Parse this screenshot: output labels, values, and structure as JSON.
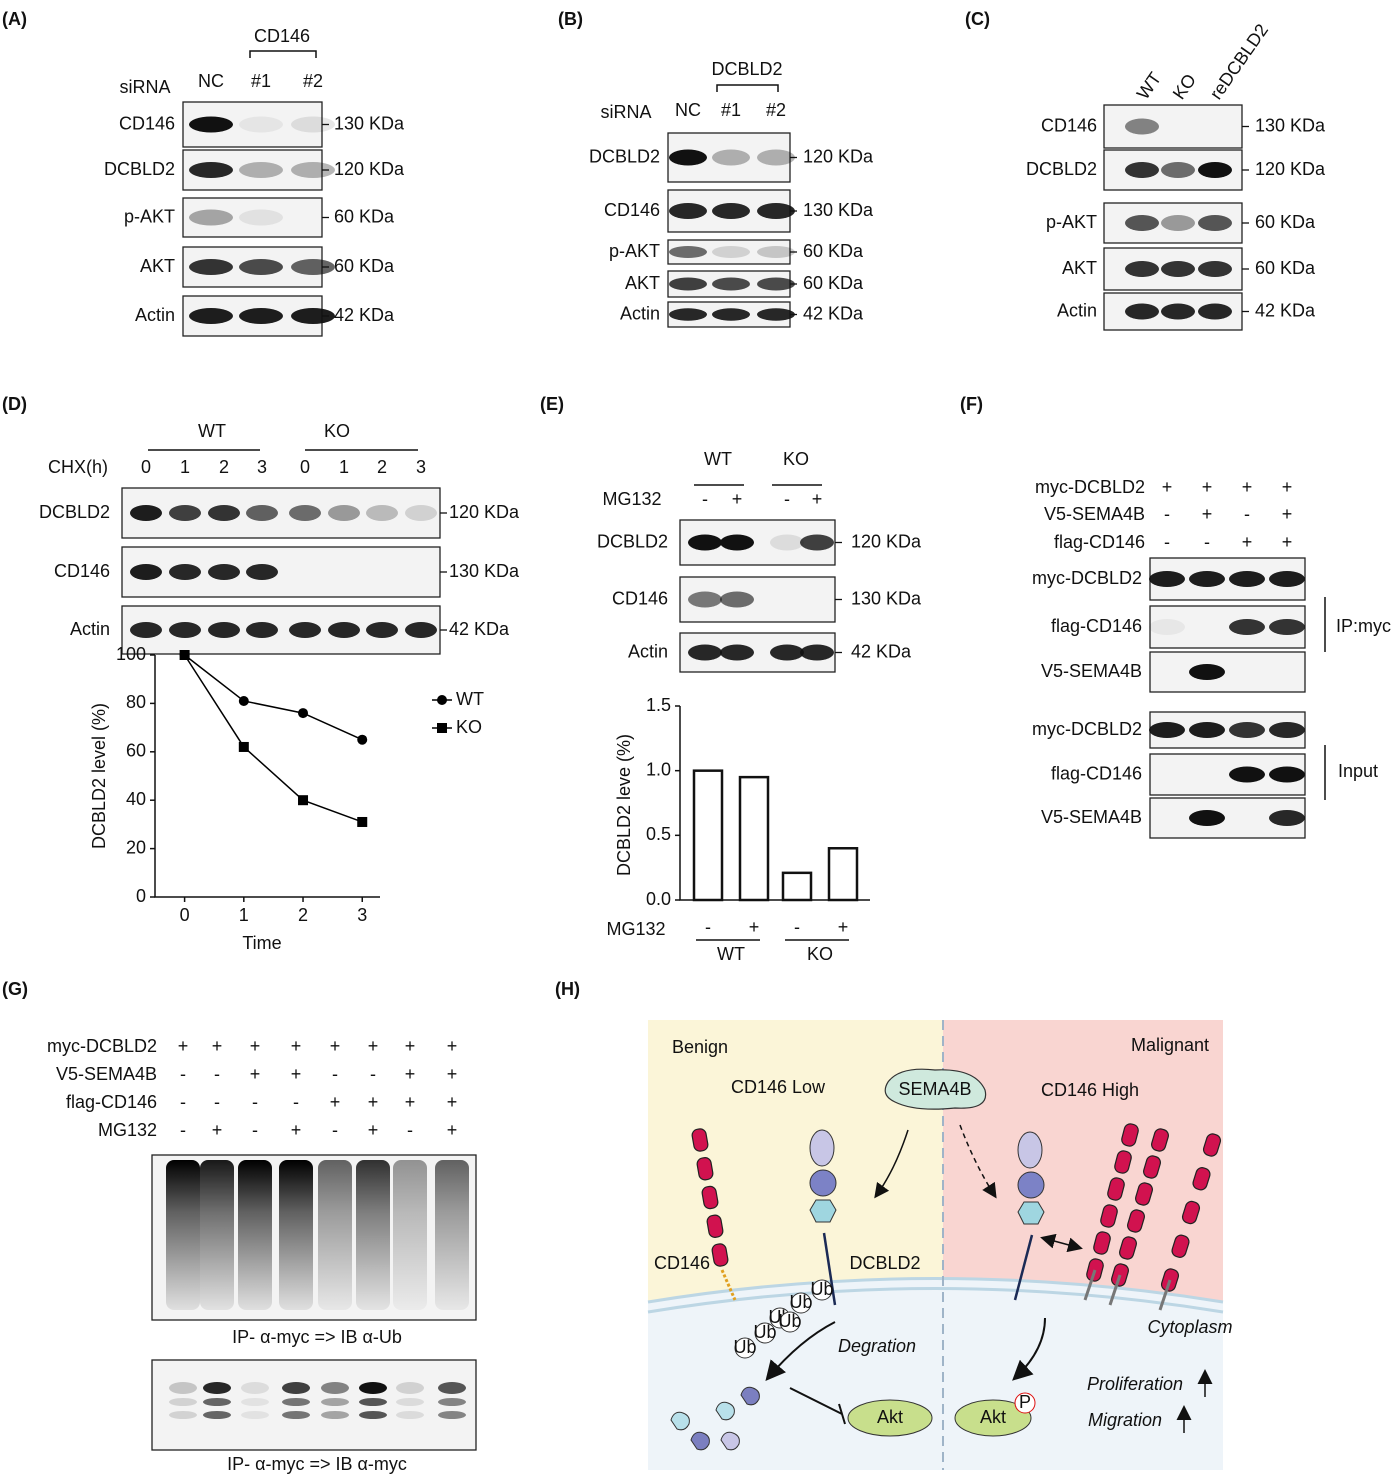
{
  "panels": {
    "A": {
      "label": "(A)",
      "group": "CD146",
      "row_label": "siRNA",
      "lanes": [
        "NC",
        "#1",
        "#2"
      ],
      "blots": [
        {
          "name": "CD146",
          "size": "130 KDa"
        },
        {
          "name": "DCBLD2",
          "size": "120 KDa"
        },
        {
          "name": "p-AKT",
          "size": "60 KDa"
        },
        {
          "name": "AKT",
          "size": "60 KDa"
        },
        {
          "name": "Actin",
          "size": "42 KDa"
        }
      ]
    },
    "B": {
      "label": "(B)",
      "group": "DCBLD2",
      "row_label": "siRNA",
      "lanes": [
        "NC",
        "#1",
        "#2"
      ],
      "blots": [
        {
          "name": "DCBLD2",
          "size": "120 KDa"
        },
        {
          "name": "CD146",
          "size": "130 KDa"
        },
        {
          "name": "p-AKT",
          "size": "60 KDa"
        },
        {
          "name": "AKT",
          "size": "60 KDa"
        },
        {
          "name": "Actin",
          "size": "42 KDa"
        }
      ]
    },
    "C": {
      "label": "(C)",
      "lanes": [
        "WT",
        "KO",
        "reDCBLD2"
      ],
      "blots": [
        {
          "name": "CD146",
          "size": "130 KDa"
        },
        {
          "name": "DCBLD2",
          "size": "120 KDa"
        },
        {
          "name": "p-AKT",
          "size": "60 KDa"
        },
        {
          "name": "AKT",
          "size": "60 KDa"
        },
        {
          "name": "Actin",
          "size": "42 KDa"
        }
      ]
    },
    "D": {
      "label": "(D)",
      "groups": [
        "WT",
        "KO"
      ],
      "row_label": "CHX(h)",
      "lanes": [
        "0",
        "1",
        "2",
        "3",
        "0",
        "1",
        "2",
        "3"
      ],
      "blots": [
        {
          "name": "DCBLD2",
          "size": "120 KDa"
        },
        {
          "name": "CD146",
          "size": "130 KDa"
        },
        {
          "name": "Actin",
          "size": "42 KDa"
        }
      ]
    },
    "E": {
      "label": "(E)",
      "groups": [
        "WT",
        "KO"
      ],
      "row_label": "MG132",
      "lanes": [
        "-",
        "+",
        "-",
        "+"
      ],
      "blots": [
        {
          "name": "DCBLD2",
          "size": "120 KDa"
        },
        {
          "name": "CD146",
          "size": "130 KDa"
        },
        {
          "name": "Actin",
          "size": "42 KDa"
        }
      ]
    },
    "F": {
      "label": "(F)",
      "treatments": [
        {
          "name": "myc-DCBLD2",
          "signs": [
            "+",
            "+",
            "+",
            "+"
          ]
        },
        {
          "name": "V5-SEMA4B",
          "signs": [
            "-",
            "+",
            "-",
            "+"
          ]
        },
        {
          "name": "flag-CD146",
          "signs": [
            "-",
            "-",
            "+",
            "+"
          ]
        }
      ],
      "blots": [
        {
          "name": "myc-DCBLD2"
        },
        {
          "name": "flag-CD146"
        },
        {
          "name": "V5-SEMA4B"
        },
        {
          "name": "myc-DCBLD2"
        },
        {
          "name": "flag-CD146"
        },
        {
          "name": "V5-SEMA4B"
        }
      ],
      "sections": [
        "IP:myc",
        "Input"
      ]
    },
    "G": {
      "label": "(G)",
      "treatments": [
        {
          "name": "myc-DCBLD2",
          "signs": [
            "+",
            "+",
            "+",
            "+",
            "+",
            "+",
            "+",
            "+"
          ]
        },
        {
          "name": "V5-SEMA4B",
          "signs": [
            "-",
            "-",
            "+",
            "+",
            "-",
            "-",
            "+",
            "+"
          ]
        },
        {
          "name": "flag-CD146",
          "signs": [
            "-",
            "-",
            "-",
            "-",
            "+",
            "+",
            "+",
            "+"
          ]
        },
        {
          "name": "MG132",
          "signs": [
            "-",
            "+",
            "-",
            "+",
            "-",
            "+",
            "-",
            "+"
          ]
        }
      ],
      "captions": [
        "IP- α-myc  => IB α-Ub",
        "IP- α-myc  => IB α-myc"
      ]
    },
    "H": {
      "label": "(H)",
      "benign": "Benign",
      "malignant": "Malignant",
      "low": "CD146 Low",
      "high": "CD146 High",
      "sema": "SEMA4B",
      "cd146": "CD146",
      "dcbld2": "DCBLD2",
      "ub": [
        "Ub",
        "Ub",
        "Ub",
        "Ub",
        "Ub",
        "Ub"
      ],
      "degradation": "Degration",
      "akt": [
        "Akt",
        "Akt"
      ],
      "p": "P",
      "proliferation": "Proliferation",
      "migration": "Migration",
      "cytoplasm": "Cytoplasm"
    }
  },
  "chart_data": [
    {
      "type": "line",
      "x": [
        0,
        1,
        2,
        3
      ],
      "series": [
        {
          "name": "WT",
          "color": "#000000",
          "marker": "circle",
          "values": [
            100,
            81,
            76,
            65
          ]
        },
        {
          "name": "KO",
          "color": "#000000",
          "marker": "square",
          "values": [
            100,
            62,
            40,
            31
          ]
        }
      ],
      "xlim": [
        -0.5,
        3.3
      ],
      "xticks": [
        0,
        1,
        2,
        3
      ],
      "ylim": [
        0,
        100
      ],
      "yticks": [
        0,
        20,
        40,
        60,
        80,
        100
      ],
      "ylabel": "DCBLD2 level (%)",
      "xlabel": "Time",
      "legend": "upper right"
    },
    {
      "type": "bar",
      "categories": [
        "-",
        "+",
        "-",
        "+"
      ],
      "groups": [
        "WT",
        "KO"
      ],
      "x_row_label": "MG132",
      "values": [
        1.0,
        0.95,
        0.21,
        0.4
      ],
      "color": "#ffffff",
      "ylim": [
        0,
        1.5
      ],
      "yticks": [
        {
          "value": 0,
          "label": "0.0"
        },
        {
          "value": 0.5,
          "label": "0.5"
        },
        {
          "value": 1,
          "label": "1.0"
        },
        {
          "value": 1.5,
          "label": "1.5"
        }
      ],
      "ylabel": "DCBLD2 leve (%)"
    }
  ]
}
